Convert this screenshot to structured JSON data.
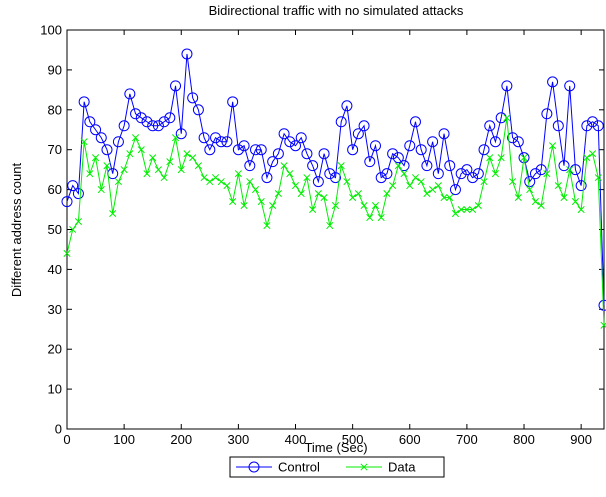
{
  "chart_data": {
    "type": "line",
    "title": "Bidirectional traffic with no simulated attacks",
    "xlabel": "Time (Sec)",
    "ylabel": "Different address count",
    "xlim": [
      0,
      940
    ],
    "ylim": [
      0,
      100
    ],
    "xticks": [
      0,
      100,
      200,
      300,
      400,
      500,
      600,
      700,
      800,
      900
    ],
    "yticks": [
      0,
      10,
      20,
      30,
      40,
      50,
      60,
      70,
      80,
      90,
      100
    ],
    "grid": false,
    "legend": "bottom-center",
    "x": [
      0,
      10,
      20,
      30,
      40,
      50,
      60,
      70,
      80,
      90,
      100,
      110,
      120,
      130,
      140,
      150,
      160,
      170,
      180,
      190,
      200,
      210,
      220,
      230,
      240,
      250,
      260,
      270,
      280,
      290,
      300,
      310,
      320,
      330,
      340,
      350,
      360,
      370,
      380,
      390,
      400,
      410,
      420,
      430,
      440,
      450,
      460,
      470,
      480,
      490,
      500,
      510,
      520,
      530,
      540,
      550,
      560,
      570,
      580,
      590,
      600,
      610,
      620,
      630,
      640,
      650,
      660,
      670,
      680,
      690,
      700,
      710,
      720,
      730,
      740,
      750,
      760,
      770,
      780,
      790,
      800,
      810,
      820,
      830,
      840,
      850,
      860,
      870,
      880,
      890,
      900,
      910,
      920,
      930,
      940
    ],
    "series": [
      {
        "name": "Control",
        "color": "#0000ff",
        "marker": "circle",
        "values": [
          57,
          61,
          59,
          82,
          77,
          75,
          73,
          70,
          64,
          72,
          76,
          84,
          79,
          78,
          77,
          76,
          76,
          77,
          78,
          86,
          74,
          94,
          83,
          80,
          73,
          70,
          73,
          72,
          72,
          82,
          70,
          71,
          66,
          70,
          70,
          63,
          67,
          69,
          74,
          72,
          71,
          73,
          69,
          66,
          62,
          69,
          64,
          63,
          77,
          81,
          70,
          74,
          76,
          67,
          71,
          63,
          64,
          69,
          68,
          66,
          71,
          77,
          70,
          66,
          72,
          64,
          74,
          66,
          60,
          64,
          65,
          63,
          64,
          70,
          76,
          72,
          78,
          86,
          73,
          72,
          68,
          62,
          64,
          65,
          79,
          87,
          76,
          66,
          86,
          65,
          61,
          76,
          77,
          76,
          31
        ],
        "color_note": "blue"
      },
      {
        "name": "Data",
        "color": "#00ee00",
        "marker": "x",
        "values": [
          44,
          50,
          52,
          72,
          64,
          68,
          60,
          66,
          54,
          62,
          65,
          69,
          73,
          70,
          64,
          68,
          65,
          63,
          67,
          73,
          65,
          69,
          68,
          66,
          63,
          62,
          63,
          62,
          61,
          57,
          64,
          56,
          62,
          60,
          57,
          51,
          56,
          59,
          66,
          64,
          61,
          59,
          63,
          55,
          59,
          58,
          51,
          56,
          66,
          62,
          58,
          59,
          56,
          53,
          56,
          53,
          59,
          61,
          66,
          64,
          61,
          63,
          62,
          59,
          60,
          61,
          58,
          58,
          54,
          55,
          55,
          55,
          56,
          62,
          68,
          64,
          68,
          78,
          62,
          58,
          68,
          60,
          57,
          56,
          64,
          71,
          61,
          58,
          65,
          57,
          55,
          68,
          69,
          63,
          26
        ]
      }
    ]
  }
}
